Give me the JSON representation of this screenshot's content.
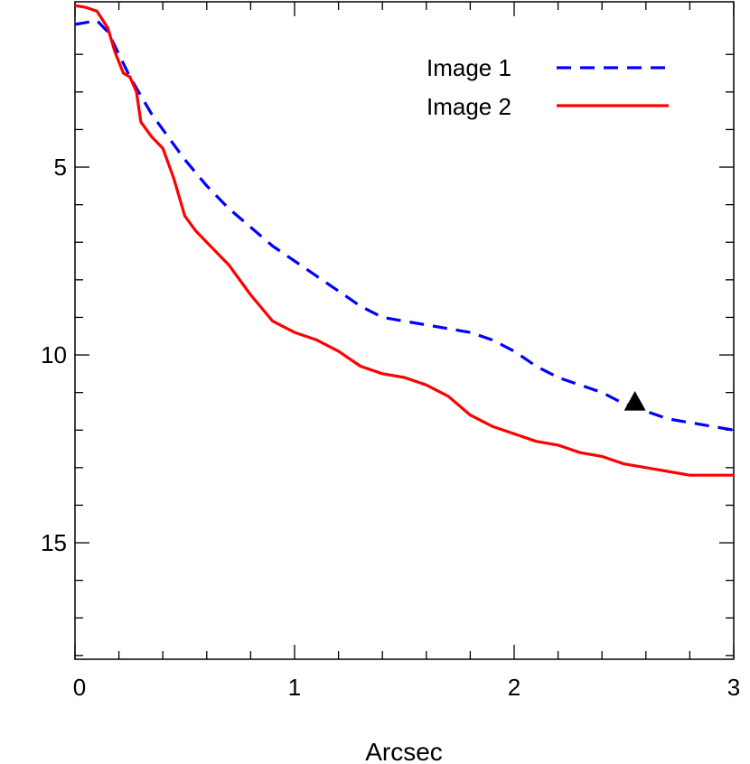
{
  "chart_data": {
    "type": "line",
    "title": "",
    "xlabel": "Arcsec",
    "ylabel": "",
    "xlim": [
      0,
      3
    ],
    "ylim": [
      0.6,
      18.1
    ],
    "y_inverted": true,
    "grid": false,
    "legend_position": "top-right",
    "x_ticks": [
      0,
      1,
      2,
      3
    ],
    "y_ticks": [
      5,
      10,
      15
    ],
    "series": [
      {
        "name": "Image 1",
        "style": "dashed",
        "color": "#0000ff",
        "x": [
          0,
          0.05,
          0.1,
          0.15,
          0.2,
          0.25,
          0.3,
          0.35,
          0.4,
          0.45,
          0.5,
          0.6,
          0.7,
          0.8,
          0.9,
          1.0,
          1.1,
          1.2,
          1.3,
          1.4,
          1.5,
          1.6,
          1.7,
          1.8,
          1.9,
          2.0,
          2.1,
          2.2,
          2.3,
          2.4,
          2.5,
          2.6,
          2.7,
          2.8,
          2.9,
          3.0
        ],
        "y": [
          1.2,
          1.15,
          1.1,
          1.4,
          2.0,
          2.6,
          3.1,
          3.6,
          4.0,
          4.4,
          4.8,
          5.5,
          6.1,
          6.6,
          7.1,
          7.5,
          7.9,
          8.3,
          8.7,
          9.0,
          9.1,
          9.2,
          9.3,
          9.4,
          9.6,
          9.9,
          10.3,
          10.6,
          10.8,
          11.0,
          11.3,
          11.5,
          11.7,
          11.8,
          11.9,
          12.0
        ]
      },
      {
        "name": "Image 2",
        "style": "solid",
        "color": "#ff0000",
        "x": [
          0,
          0.05,
          0.1,
          0.15,
          0.18,
          0.2,
          0.22,
          0.25,
          0.28,
          0.3,
          0.35,
          0.4,
          0.45,
          0.5,
          0.55,
          0.6,
          0.7,
          0.8,
          0.9,
          1.0,
          1.1,
          1.2,
          1.3,
          1.4,
          1.5,
          1.6,
          1.7,
          1.8,
          1.9,
          2.0,
          2.1,
          2.2,
          2.3,
          2.4,
          2.5,
          2.6,
          2.7,
          2.8,
          2.9,
          3.0
        ],
        "y": [
          0.7,
          0.75,
          0.85,
          1.3,
          1.9,
          2.2,
          2.5,
          2.6,
          3.0,
          3.8,
          4.2,
          4.5,
          5.3,
          6.3,
          6.7,
          7.0,
          7.6,
          8.4,
          9.1,
          9.4,
          9.6,
          9.9,
          10.3,
          10.5,
          10.6,
          10.8,
          11.1,
          11.6,
          11.9,
          12.1,
          12.3,
          12.4,
          12.6,
          12.7,
          12.9,
          13.0,
          13.1,
          13.2,
          13.2,
          13.2
        ]
      }
    ],
    "markers": [
      {
        "shape": "triangle",
        "color": "#000000",
        "x": 2.55,
        "y": 11.25
      }
    ]
  }
}
